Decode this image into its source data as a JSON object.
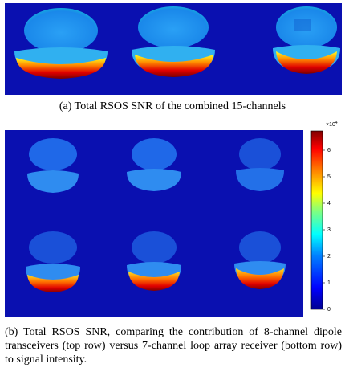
{
  "figure_a": {
    "caption": "(a) Total RSOS SNR of the combined 15-channels"
  },
  "figure_b": {
    "caption": "(b) Total RSOS SNR, comparing the contribution of 8-channel dipole transceivers (top row) versus 7-channel loop array receiver (bottom row) to signal intensity."
  },
  "colorbar": {
    "exponent": "×10",
    "exponent_power": "4",
    "ticks": [
      "0",
      "1",
      "2",
      "3",
      "4",
      "5",
      "6"
    ],
    "colormap": [
      "#00008f",
      "#0000ff",
      "#0080ff",
      "#00ffff",
      "#80ff80",
      "#ffff00",
      "#ff8000",
      "#ff0000",
      "#800000"
    ]
  },
  "colors": {
    "background": "#0a10b0",
    "tissue": "#1e8cf0"
  }
}
